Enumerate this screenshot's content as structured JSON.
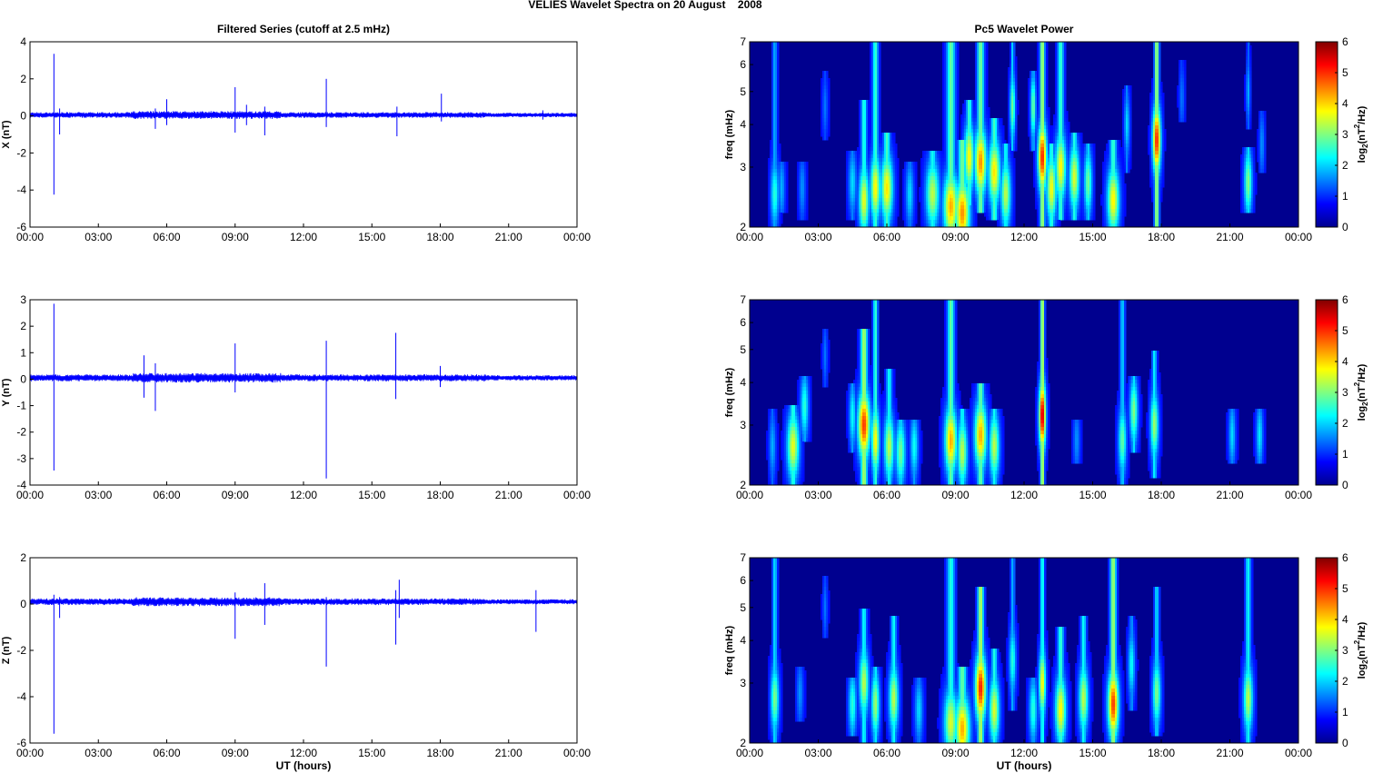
{
  "figure_title": "VELIES Wavelet Spectra on 20 August    2008",
  "chart_data": [
    {
      "type": "line",
      "title": "Filtered Series (cutoff at 2.5 mHz)",
      "xlabel": "",
      "ylabel": "X (nT)",
      "color": "#0000ff",
      "xlim": [
        0,
        24
      ],
      "ylim": [
        -6,
        4
      ],
      "x_ticks": [
        "00:00",
        "03:00",
        "06:00",
        "09:00",
        "12:00",
        "15:00",
        "18:00",
        "21:00",
        "00:00"
      ],
      "y_ticks": [
        "4",
        "2",
        "0",
        "-2",
        "-4",
        "-6"
      ],
      "baseline": 0.05,
      "noise": 0.13,
      "spikes": [
        {
          "t": 1.05,
          "hi": 3.35,
          "lo": -4.25
        },
        {
          "t": 1.3,
          "hi": 0.4,
          "lo": -1.0
        },
        {
          "t": 5.5,
          "hi": 0.4,
          "lo": -0.7
        },
        {
          "t": 6.0,
          "hi": 0.9,
          "lo": -0.5
        },
        {
          "t": 9.0,
          "hi": 1.55,
          "lo": -0.9
        },
        {
          "t": 9.5,
          "hi": 0.6,
          "lo": -0.5
        },
        {
          "t": 10.3,
          "hi": 0.5,
          "lo": -1.05
        },
        {
          "t": 13.0,
          "hi": 2.0,
          "lo": -0.6
        },
        {
          "t": 16.1,
          "hi": 0.5,
          "lo": -1.1
        },
        {
          "t": 18.05,
          "hi": 1.2,
          "lo": -0.3
        },
        {
          "t": 22.5,
          "hi": 0.3,
          "lo": -0.2
        }
      ]
    },
    {
      "type": "heatmap",
      "title": "Pc5 Wavelet Power",
      "xlabel": "",
      "ylabel": "freq (mHz)",
      "colorbar_label": "log2(nT^2/Hz)",
      "colorbar_ticks": [
        "6",
        "5",
        "4",
        "3",
        "2",
        "1",
        "0"
      ],
      "zlim": [
        0,
        6
      ],
      "xlim": [
        0,
        24
      ],
      "ylim": [
        2,
        7
      ],
      "y_scale": "log",
      "x_ticks": [
        "00:00",
        "03:00",
        "06:00",
        "09:00",
        "12:00",
        "15:00",
        "18:00",
        "21:00",
        "00:00"
      ],
      "y_ticks": [
        "7",
        "6",
        "5",
        "4",
        "3",
        "2"
      ],
      "features": [
        {
          "t": 1.1,
          "f": 2.5,
          "amp": 2.0,
          "w": 0.12,
          "f0": 2.0,
          "f1": 7.0
        },
        {
          "t": 1.4,
          "f": 2.6,
          "amp": 1.2,
          "w": 0.1,
          "f0": 2.3,
          "f1": 3.0
        },
        {
          "t": 2.3,
          "f": 2.6,
          "amp": 1.0,
          "w": 0.1,
          "f0": 2.2,
          "f1": 3.0
        },
        {
          "t": 3.3,
          "f": 4.5,
          "amp": 0.8,
          "w": 0.08,
          "f0": 3.8,
          "f1": 5.5
        },
        {
          "t": 4.5,
          "f": 2.7,
          "amp": 1.5,
          "w": 0.12,
          "f0": 2.2,
          "f1": 3.2
        },
        {
          "t": 5.0,
          "f": 2.4,
          "amp": 3.3,
          "w": 0.15,
          "f0": 2.0,
          "f1": 4.5
        },
        {
          "t": 5.5,
          "f": 2.6,
          "amp": 3.5,
          "w": 0.15,
          "f0": 2.0,
          "f1": 7.0
        },
        {
          "t": 6.0,
          "f": 2.6,
          "amp": 3.6,
          "w": 0.18,
          "f0": 2.0,
          "f1": 3.6
        },
        {
          "t": 7.0,
          "f": 2.5,
          "amp": 1.5,
          "w": 0.12,
          "f0": 2.0,
          "f1": 3.0
        },
        {
          "t": 8.0,
          "f": 2.5,
          "amp": 3.0,
          "w": 0.2,
          "f0": 2.0,
          "f1": 3.2
        },
        {
          "t": 8.8,
          "f": 2.3,
          "amp": 4.0,
          "w": 0.22,
          "f0": 2.0,
          "f1": 7.0
        },
        {
          "t": 9.3,
          "f": 2.2,
          "amp": 4.2,
          "w": 0.22,
          "f0": 2.0,
          "f1": 3.5
        },
        {
          "t": 9.6,
          "f": 3.2,
          "amp": 3.5,
          "w": 0.15,
          "f0": 2.4,
          "f1": 4.5
        },
        {
          "t": 10.1,
          "f": 3.1,
          "amp": 4.2,
          "w": 0.18,
          "f0": 2.3,
          "f1": 7.0
        },
        {
          "t": 10.7,
          "f": 2.9,
          "amp": 3.6,
          "w": 0.18,
          "f0": 2.2,
          "f1": 4.0
        },
        {
          "t": 11.2,
          "f": 2.5,
          "amp": 3.0,
          "w": 0.15,
          "f0": 2.0,
          "f1": 3.4
        },
        {
          "t": 11.5,
          "f": 4.5,
          "amp": 2.5,
          "w": 0.08,
          "f0": 3.5,
          "f1": 7.0
        },
        {
          "t": 12.4,
          "f": 4.5,
          "amp": 2.5,
          "w": 0.08,
          "f0": 3.5,
          "f1": 5.5
        },
        {
          "t": 12.8,
          "f": 3.2,
          "amp": 5.0,
          "w": 0.13,
          "f0": 2.0,
          "f1": 7.0
        },
        {
          "t": 13.2,
          "f": 2.6,
          "amp": 3.4,
          "w": 0.15,
          "f0": 2.0,
          "f1": 3.4
        },
        {
          "t": 13.6,
          "f": 3.0,
          "amp": 3.5,
          "w": 0.16,
          "f0": 2.2,
          "f1": 7.0
        },
        {
          "t": 14.2,
          "f": 2.8,
          "amp": 3.2,
          "w": 0.15,
          "f0": 2.2,
          "f1": 3.6
        },
        {
          "t": 14.8,
          "f": 2.7,
          "amp": 2.5,
          "w": 0.12,
          "f0": 2.2,
          "f1": 3.4
        },
        {
          "t": 15.9,
          "f": 2.4,
          "amp": 3.5,
          "w": 0.18,
          "f0": 2.0,
          "f1": 3.5
        },
        {
          "t": 16.5,
          "f": 4.0,
          "amp": 1.5,
          "w": 0.08,
          "f0": 3.0,
          "f1": 5.0
        },
        {
          "t": 17.8,
          "f": 3.6,
          "amp": 5.0,
          "w": 0.12,
          "f0": 2.0,
          "f1": 7.0
        },
        {
          "t": 18.9,
          "f": 4.8,
          "amp": 0.8,
          "w": 0.08,
          "f0": 4.2,
          "f1": 6.0
        },
        {
          "t": 21.8,
          "f": 2.7,
          "amp": 2.6,
          "w": 0.12,
          "f0": 2.3,
          "f1": 3.3
        },
        {
          "t": 21.8,
          "f": 5.0,
          "amp": 1.2,
          "w": 0.06,
          "f0": 4.0,
          "f1": 6.8
        },
        {
          "t": 22.4,
          "f": 3.5,
          "amp": 1.0,
          "w": 0.08,
          "f0": 3.0,
          "f1": 4.2
        }
      ]
    },
    {
      "type": "line",
      "title": "",
      "xlabel": "",
      "ylabel": "Y (nT)",
      "color": "#0000ff",
      "xlim": [
        0,
        24
      ],
      "ylim": [
        -4,
        3
      ],
      "x_ticks": [
        "00:00",
        "03:00",
        "06:00",
        "09:00",
        "12:00",
        "15:00",
        "18:00",
        "21:00",
        "00:00"
      ],
      "y_ticks": [
        "3",
        "2",
        "1",
        "0",
        "-1",
        "-2",
        "-3",
        "-4"
      ],
      "baseline": 0.05,
      "noise": 0.11,
      "spikes": [
        {
          "t": 1.05,
          "hi": 2.85,
          "lo": -3.45
        },
        {
          "t": 5.0,
          "hi": 0.9,
          "lo": -0.7
        },
        {
          "t": 5.5,
          "hi": 0.6,
          "lo": -1.2
        },
        {
          "t": 9.0,
          "hi": 1.35,
          "lo": -0.5
        },
        {
          "t": 13.0,
          "hi": 1.45,
          "lo": -3.75
        },
        {
          "t": 16.05,
          "hi": 1.75,
          "lo": -0.75
        },
        {
          "t": 18.0,
          "hi": 0.5,
          "lo": -0.3
        }
      ]
    },
    {
      "type": "heatmap",
      "title": "",
      "xlabel": "",
      "ylabel": "freq (mHz)",
      "colorbar_label": "log2(nT^2/Hz)",
      "colorbar_ticks": [
        "6",
        "5",
        "4",
        "3",
        "2",
        "1",
        "0"
      ],
      "zlim": [
        0,
        6
      ],
      "xlim": [
        0,
        24
      ],
      "ylim": [
        2,
        7
      ],
      "y_scale": "log",
      "x_ticks": [
        "00:00",
        "03:00",
        "06:00",
        "09:00",
        "12:00",
        "15:00",
        "18:00",
        "21:00",
        "00:00"
      ],
      "y_ticks": [
        "7",
        "6",
        "5",
        "4",
        "3",
        "2"
      ],
      "features": [
        {
          "t": 1.0,
          "f": 2.6,
          "amp": 1.2,
          "w": 0.1,
          "f0": 2.0,
          "f1": 3.2
        },
        {
          "t": 1.9,
          "f": 2.6,
          "amp": 3.3,
          "w": 0.18,
          "f0": 2.0,
          "f1": 3.3
        },
        {
          "t": 2.4,
          "f": 3.4,
          "amp": 2.0,
          "w": 0.12,
          "f0": 2.8,
          "f1": 4.0
        },
        {
          "t": 3.3,
          "f": 4.8,
          "amp": 0.8,
          "w": 0.07,
          "f0": 4.0,
          "f1": 5.5
        },
        {
          "t": 4.5,
          "f": 3.2,
          "amp": 1.8,
          "w": 0.1,
          "f0": 2.6,
          "f1": 3.8
        },
        {
          "t": 5.0,
          "f": 3.0,
          "amp": 4.8,
          "w": 0.18,
          "f0": 2.0,
          "f1": 5.5
        },
        {
          "t": 5.5,
          "f": 2.7,
          "amp": 3.5,
          "w": 0.12,
          "f0": 2.0,
          "f1": 7.0
        },
        {
          "t": 6.1,
          "f": 2.6,
          "amp": 3.0,
          "w": 0.15,
          "f0": 2.0,
          "f1": 4.2
        },
        {
          "t": 6.6,
          "f": 2.5,
          "amp": 2.5,
          "w": 0.15,
          "f0": 2.0,
          "f1": 3.0
        },
        {
          "t": 7.2,
          "f": 2.6,
          "amp": 1.8,
          "w": 0.12,
          "f0": 2.0,
          "f1": 3.0
        },
        {
          "t": 8.8,
          "f": 2.7,
          "amp": 4.0,
          "w": 0.18,
          "f0": 2.0,
          "f1": 7.0
        },
        {
          "t": 9.3,
          "f": 2.5,
          "amp": 3.0,
          "w": 0.15,
          "f0": 2.0,
          "f1": 3.2
        },
        {
          "t": 10.1,
          "f": 2.8,
          "amp": 4.0,
          "w": 0.18,
          "f0": 2.0,
          "f1": 3.8
        },
        {
          "t": 10.7,
          "f": 2.6,
          "amp": 3.0,
          "w": 0.15,
          "f0": 2.0,
          "f1": 3.2
        },
        {
          "t": 12.8,
          "f": 3.2,
          "amp": 5.6,
          "w": 0.1,
          "f0": 2.0,
          "f1": 7.0
        },
        {
          "t": 14.3,
          "f": 2.7,
          "amp": 1.0,
          "w": 0.1,
          "f0": 2.4,
          "f1": 3.0
        },
        {
          "t": 16.3,
          "f": 2.7,
          "amp": 2.4,
          "w": 0.12,
          "f0": 2.0,
          "f1": 7.0
        },
        {
          "t": 16.8,
          "f": 3.3,
          "amp": 2.6,
          "w": 0.12,
          "f0": 2.6,
          "f1": 4.0
        },
        {
          "t": 17.7,
          "f": 3.0,
          "amp": 2.8,
          "w": 0.12,
          "f0": 2.2,
          "f1": 4.8
        },
        {
          "t": 21.1,
          "f": 2.8,
          "amp": 1.5,
          "w": 0.1,
          "f0": 2.4,
          "f1": 3.2
        },
        {
          "t": 22.3,
          "f": 2.8,
          "amp": 1.6,
          "w": 0.1,
          "f0": 2.4,
          "f1": 3.2
        }
      ]
    },
    {
      "type": "line",
      "title": "",
      "xlabel": "UT (hours)",
      "ylabel": "Z (nT)",
      "color": "#0000ff",
      "xlim": [
        0,
        24
      ],
      "ylim": [
        -6,
        2
      ],
      "x_ticks": [
        "00:00",
        "03:00",
        "06:00",
        "09:00",
        "12:00",
        "15:00",
        "18:00",
        "21:00",
        "00:00"
      ],
      "y_ticks": [
        "2",
        "0",
        "-2",
        "-4",
        "-6"
      ],
      "baseline": 0.1,
      "noise": 0.12,
      "spikes": [
        {
          "t": 1.05,
          "hi": 0.4,
          "lo": -5.6
        },
        {
          "t": 1.3,
          "hi": 0.3,
          "lo": -0.6
        },
        {
          "t": 9.0,
          "hi": 0.5,
          "lo": -1.5
        },
        {
          "t": 10.3,
          "hi": 0.9,
          "lo": -0.9
        },
        {
          "t": 13.0,
          "hi": 0.3,
          "lo": -2.7
        },
        {
          "t": 16.05,
          "hi": 0.6,
          "lo": -1.75
        },
        {
          "t": 16.2,
          "hi": 1.05,
          "lo": -0.6
        },
        {
          "t": 22.2,
          "hi": 0.6,
          "lo": -1.2
        }
      ]
    },
    {
      "type": "heatmap",
      "title": "",
      "xlabel": "UT (hours)",
      "ylabel": "freq (mHz)",
      "colorbar_label": "log2(nT^2/Hz)",
      "colorbar_ticks": [
        "6",
        "5",
        "4",
        "3",
        "2",
        "1",
        "0"
      ],
      "zlim": [
        0,
        6
      ],
      "xlim": [
        0,
        24
      ],
      "ylim": [
        2,
        7
      ],
      "y_scale": "log",
      "x_ticks": [
        "00:00",
        "03:00",
        "06:00",
        "09:00",
        "12:00",
        "15:00",
        "18:00",
        "21:00",
        "00:00"
      ],
      "y_ticks": [
        "7",
        "6",
        "5",
        "4",
        "3",
        "2"
      ],
      "features": [
        {
          "t": 1.1,
          "f": 2.7,
          "amp": 2.6,
          "w": 0.12,
          "f0": 2.0,
          "f1": 7.0
        },
        {
          "t": 2.2,
          "f": 2.8,
          "amp": 1.0,
          "w": 0.1,
          "f0": 2.4,
          "f1": 3.2
        },
        {
          "t": 3.3,
          "f": 5.0,
          "amp": 0.8,
          "w": 0.07,
          "f0": 4.2,
          "f1": 6.0
        },
        {
          "t": 4.5,
          "f": 2.6,
          "amp": 2.0,
          "w": 0.12,
          "f0": 2.2,
          "f1": 3.0
        },
        {
          "t": 5.0,
          "f": 3.0,
          "amp": 3.0,
          "w": 0.14,
          "f0": 2.0,
          "f1": 4.8
        },
        {
          "t": 5.5,
          "f": 2.6,
          "amp": 2.8,
          "w": 0.12,
          "f0": 2.0,
          "f1": 3.2
        },
        {
          "t": 6.3,
          "f": 2.7,
          "amp": 3.0,
          "w": 0.14,
          "f0": 2.0,
          "f1": 4.5
        },
        {
          "t": 7.4,
          "f": 2.5,
          "amp": 1.5,
          "w": 0.12,
          "f0": 2.0,
          "f1": 3.0
        },
        {
          "t": 8.8,
          "f": 2.3,
          "amp": 3.2,
          "w": 0.2,
          "f0": 2.0,
          "f1": 7.0
        },
        {
          "t": 9.3,
          "f": 2.2,
          "amp": 4.0,
          "w": 0.22,
          "f0": 2.0,
          "f1": 3.2
        },
        {
          "t": 10.1,
          "f": 2.9,
          "amp": 5.0,
          "w": 0.16,
          "f0": 2.0,
          "f1": 5.5
        },
        {
          "t": 10.7,
          "f": 2.5,
          "amp": 3.2,
          "w": 0.15,
          "f0": 2.0,
          "f1": 3.6
        },
        {
          "t": 11.5,
          "f": 3.5,
          "amp": 2.0,
          "w": 0.1,
          "f0": 2.6,
          "f1": 7.0
        },
        {
          "t": 12.4,
          "f": 2.5,
          "amp": 2.0,
          "w": 0.12,
          "f0": 2.0,
          "f1": 3.0
        },
        {
          "t": 12.8,
          "f": 3.0,
          "amp": 3.5,
          "w": 0.1,
          "f0": 2.0,
          "f1": 7.0
        },
        {
          "t": 13.6,
          "f": 2.5,
          "amp": 3.5,
          "w": 0.16,
          "f0": 2.0,
          "f1": 4.2
        },
        {
          "t": 14.6,
          "f": 2.7,
          "amp": 3.0,
          "w": 0.14,
          "f0": 2.0,
          "f1": 4.5
        },
        {
          "t": 15.9,
          "f": 2.6,
          "amp": 4.8,
          "w": 0.16,
          "f0": 2.0,
          "f1": 7.0
        },
        {
          "t": 16.7,
          "f": 3.4,
          "amp": 1.8,
          "w": 0.1,
          "f0": 2.6,
          "f1": 4.5
        },
        {
          "t": 17.8,
          "f": 2.8,
          "amp": 2.6,
          "w": 0.12,
          "f0": 2.2,
          "f1": 5.5
        },
        {
          "t": 21.8,
          "f": 2.7,
          "amp": 3.0,
          "w": 0.14,
          "f0": 2.0,
          "f1": 7.0
        }
      ]
    }
  ]
}
